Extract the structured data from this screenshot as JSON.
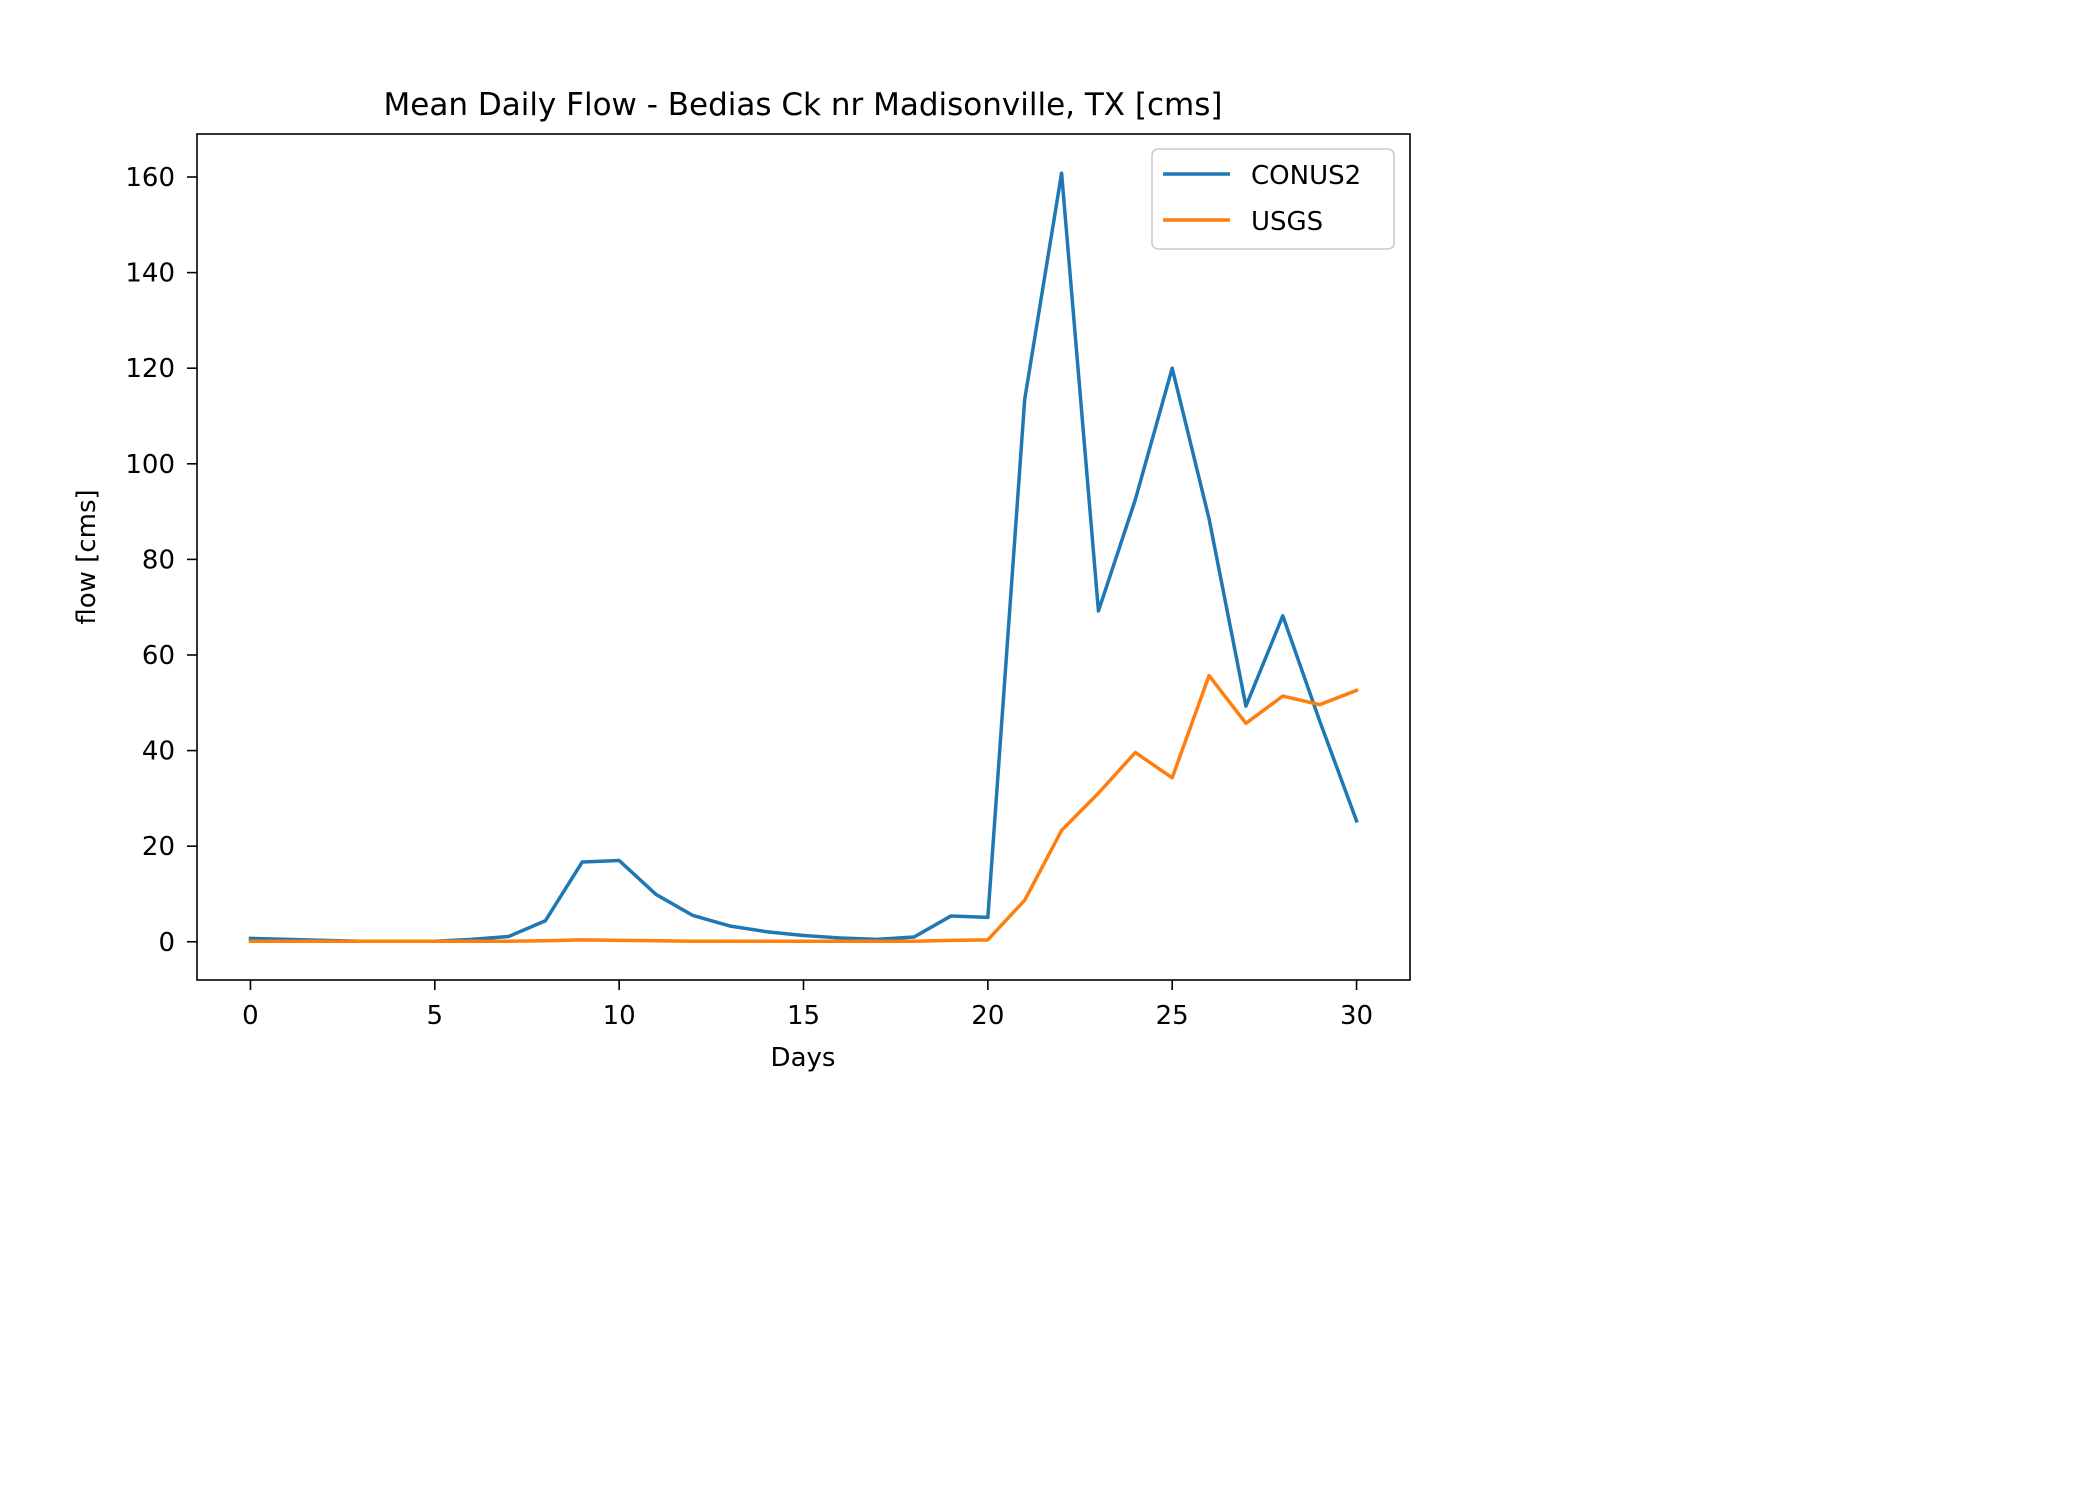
{
  "chart_data": {
    "type": "line",
    "title": "Mean Daily Flow - Bedias Ck nr Madisonville, TX [cms]",
    "xlabel": "Days",
    "ylabel": "flow [cms]",
    "xlim": [
      -1.45,
      31.45
    ],
    "ylim": [
      -8,
      169
    ],
    "xticks": [
      0,
      5,
      10,
      15,
      20,
      25,
      30
    ],
    "yticks": [
      0,
      20,
      40,
      60,
      80,
      100,
      120,
      140,
      160
    ],
    "grid": false,
    "legend_position": "top-right",
    "x": [
      0,
      1,
      2,
      3,
      4,
      5,
      6,
      7,
      8,
      9,
      10,
      11,
      12,
      13,
      14,
      15,
      16,
      17,
      18,
      19,
      20,
      21,
      22,
      23,
      24,
      25,
      26,
      27,
      28,
      29,
      30
    ],
    "series": [
      {
        "name": "CONUS2",
        "color": "#1f77b4",
        "values": [
          0.7,
          0.5,
          0.3,
          0.1,
          0.1,
          0.1,
          0.5,
          1.1,
          4.4,
          16.7,
          17.0,
          9.9,
          5.5,
          3.3,
          2.1,
          1.3,
          0.8,
          0.5,
          1.0,
          5.4,
          5.1,
          113.5,
          160.8,
          69.2,
          92.5,
          120.0,
          88.5,
          49.3,
          68.2,
          46.2,
          25.3
        ]
      },
      {
        "name": "USGS",
        "color": "#ff7f0e",
        "values": [
          0.1,
          0.1,
          0.1,
          0.1,
          0.1,
          0.1,
          0.1,
          0.1,
          0.2,
          0.4,
          0.3,
          0.2,
          0.1,
          0.1,
          0.1,
          0.1,
          0.1,
          0.1,
          0.1,
          0.3,
          0.4,
          8.7,
          23.3,
          31.1,
          39.6,
          34.3,
          55.7,
          45.7,
          51.4,
          49.6,
          52.6
        ]
      }
    ]
  }
}
